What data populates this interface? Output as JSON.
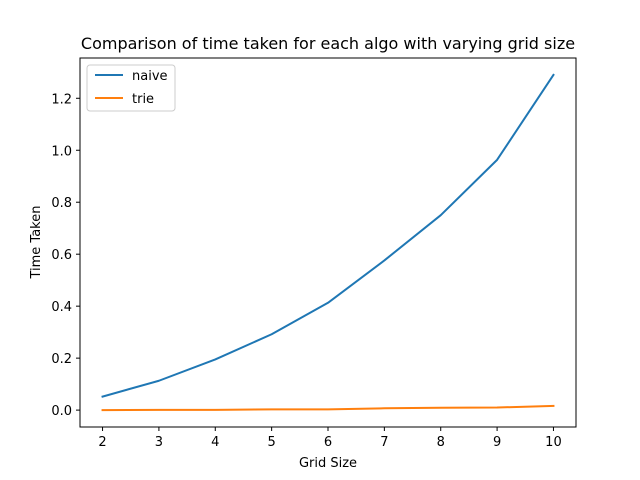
{
  "chart_data": {
    "type": "line",
    "title": "Comparison of time taken for each algo with varying grid size",
    "xlabel": "Grid Size",
    "ylabel": "Time Taken",
    "x": [
      2,
      3,
      4,
      5,
      6,
      7,
      8,
      9,
      10
    ],
    "xticks": [
      "2",
      "3",
      "4",
      "5",
      "6",
      "7",
      "8",
      "9",
      "10"
    ],
    "yticks": [
      "0.0",
      "0.2",
      "0.4",
      "0.6",
      "0.8",
      "1.0",
      "1.2"
    ],
    "xlim": [
      1.6,
      10.4
    ],
    "ylim": [
      -0.065,
      1.355
    ],
    "grid": false,
    "legend_position": "top-left",
    "series": [
      {
        "name": "naive",
        "color": "#1f77b4",
        "values": [
          0.052,
          0.113,
          0.195,
          0.292,
          0.413,
          0.576,
          0.75,
          0.963,
          1.29
        ]
      },
      {
        "name": "trie",
        "color": "#ff7f0e",
        "values": [
          0.0,
          0.001,
          0.001,
          0.003,
          0.003,
          0.007,
          0.009,
          0.01,
          0.016
        ]
      }
    ]
  }
}
